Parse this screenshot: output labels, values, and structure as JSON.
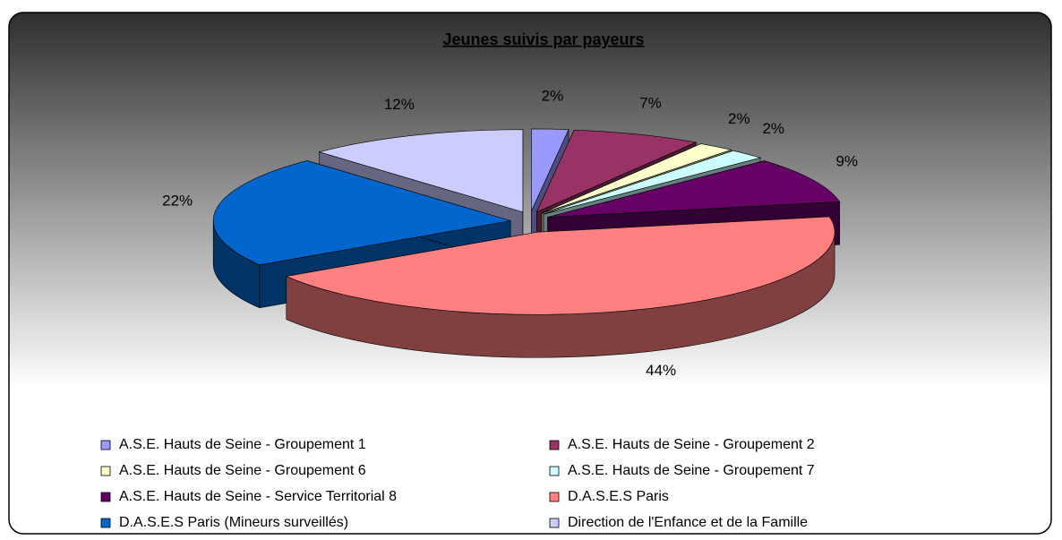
{
  "chart_data": {
    "type": "pie",
    "title": "Jeunes suivis par payeurs",
    "categories": [
      "A.S.E. Hauts de Seine - Groupement 1",
      "A.S.E. Hauts de Seine - Groupement 2",
      "A.S.E. Hauts de Seine - Groupement 6",
      "A.S.E. Hauts de Seine - Groupement 7",
      "A.S.E. Hauts de Seine - Service Territorial 8",
      "D.A.S.E.S Paris",
      "D.A.S.E.S Paris (Mineurs surveillés)",
      "Direction de l'Enfance et de la Famille"
    ],
    "values": [
      2,
      7,
      2,
      2,
      9,
      44,
      22,
      12
    ],
    "value_labels": [
      "2%",
      "7%",
      "2%",
      "2%",
      "9%",
      "44%",
      "22%",
      "12%"
    ],
    "colors": [
      "#9999FF",
      "#993366",
      "#FFFFCC",
      "#CCFFFF",
      "#660066",
      "#FF8080",
      "#0066CC",
      "#CCCCFF"
    ]
  }
}
